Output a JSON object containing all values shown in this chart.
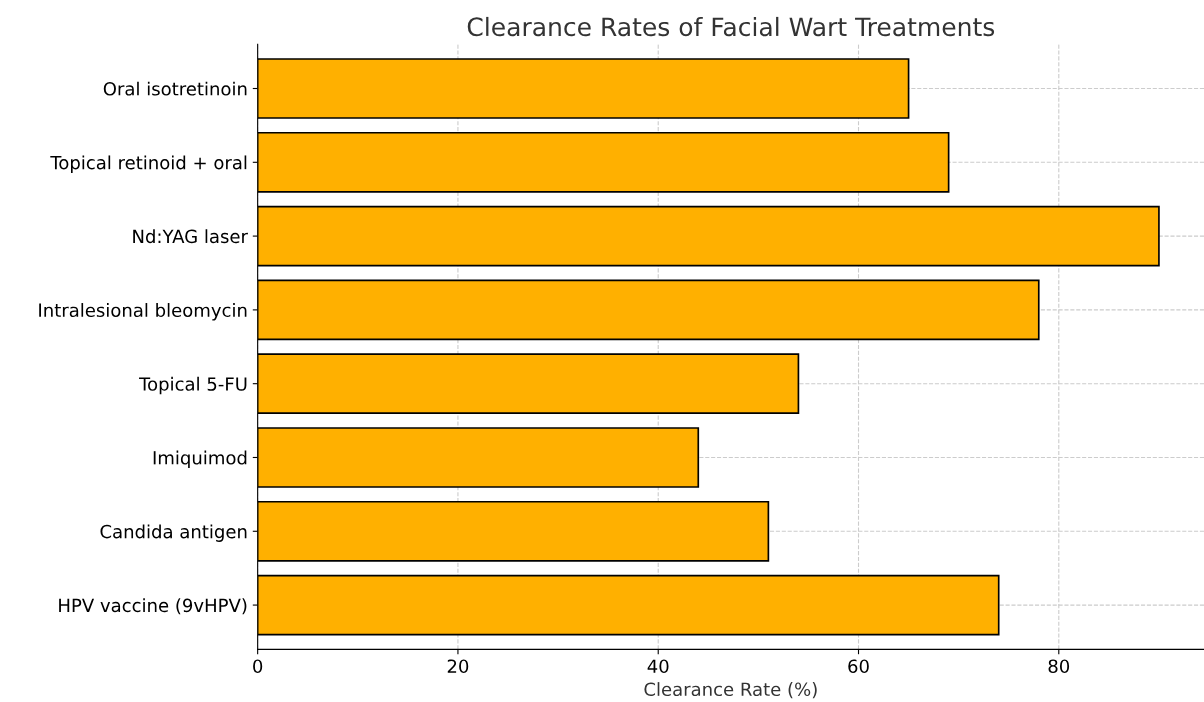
{
  "chart_data": {
    "type": "bar",
    "orientation": "horizontal",
    "title": "Clearance Rates of Facial Wart Treatments",
    "xlabel": "Clearance Rate (%)",
    "categories": [
      "Oral isotretinoin",
      "Topical retinoid + oral",
      "Nd:YAG laser",
      "Intralesional bleomycin",
      "Topical 5-FU",
      "Imiquimod",
      "Candida antigen",
      "HPV vaccine (9vHPV)"
    ],
    "values": [
      65,
      69,
      90,
      78,
      54,
      44,
      51,
      74
    ],
    "color": "#ffb000",
    "xlim": [
      0,
      94.5
    ],
    "xticks": [
      0,
      20,
      40,
      60,
      80
    ],
    "grid": true
  }
}
